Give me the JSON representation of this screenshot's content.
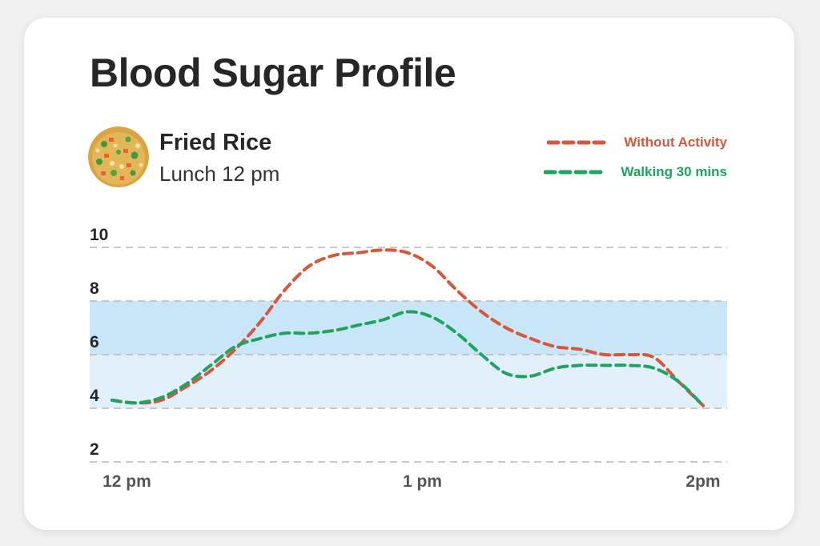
{
  "title": "Blood Sugar Profile",
  "meal": {
    "food_name": "Fried Rice",
    "time_label": "Lunch 12 pm"
  },
  "legend": [
    {
      "label": "Without Activity",
      "color": "#d7573b"
    },
    {
      "label": "Walking 30 mins",
      "color": "#1fa35f"
    }
  ],
  "colors": {
    "target_band_upper": "#c9e6f8",
    "target_band_lower": "#e1f0fb",
    "gridline": "#b9b9b9",
    "text": "#262626",
    "axis_label": "#555555"
  },
  "chart_data": {
    "type": "line",
    "title": "Blood Sugar Profile",
    "xlabel": "",
    "ylabel": "",
    "xlim": [
      0,
      120
    ],
    "ylim": [
      2,
      10
    ],
    "x_ticks": [
      {
        "value": 3,
        "label": "12 pm"
      },
      {
        "value": 63,
        "label": "1 pm"
      },
      {
        "value": 120,
        "label": "2pm"
      }
    ],
    "y_ticks": [
      {
        "value": 10,
        "label": "10"
      },
      {
        "value": 8,
        "label": "8"
      },
      {
        "value": 6,
        "label": "6"
      },
      {
        "value": 4,
        "label": "4"
      },
      {
        "value": 2,
        "label": "2"
      }
    ],
    "grid": true,
    "bands": [
      {
        "from": 6,
        "to": 8,
        "shade": "upper"
      },
      {
        "from": 4,
        "to": 6,
        "shade": "lower"
      }
    ],
    "series": [
      {
        "name": "Without Activity",
        "color": "#d7573b",
        "x": [
          0,
          5,
          10,
          15,
          20,
          25,
          30,
          35,
          40,
          45,
          50,
          55,
          60,
          65,
          70,
          75,
          80,
          85,
          90,
          95,
          100,
          105,
          110,
          115,
          120
        ],
        "values": [
          4.3,
          4.2,
          4.3,
          4.8,
          5.4,
          6.2,
          7.2,
          8.4,
          9.3,
          9.7,
          9.8,
          9.9,
          9.8,
          9.3,
          8.4,
          7.6,
          7.0,
          6.6,
          6.3,
          6.2,
          6.0,
          6.0,
          5.9,
          5.0,
          4.1
        ]
      },
      {
        "name": "Walking 30 mins",
        "color": "#1fa35f",
        "x": [
          0,
          5,
          10,
          15,
          20,
          25,
          30,
          35,
          40,
          45,
          50,
          55,
          60,
          65,
          70,
          75,
          80,
          85,
          90,
          95,
          100,
          105,
          110,
          115,
          120
        ],
        "values": [
          4.3,
          4.2,
          4.4,
          4.9,
          5.6,
          6.3,
          6.6,
          6.8,
          6.8,
          6.9,
          7.1,
          7.3,
          7.6,
          7.4,
          6.8,
          6.0,
          5.3,
          5.2,
          5.5,
          5.6,
          5.6,
          5.6,
          5.5,
          5.0,
          4.1
        ]
      }
    ]
  }
}
